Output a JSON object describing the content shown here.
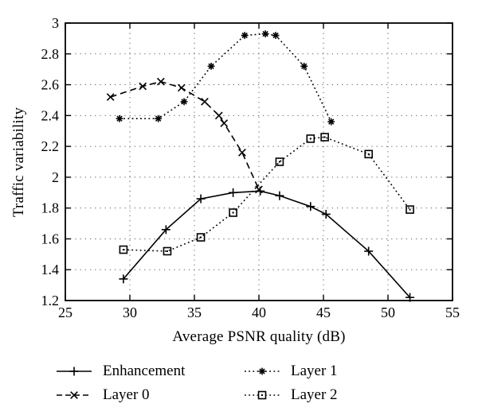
{
  "figure": {
    "background": "#ffffff",
    "ink": "#000000"
  },
  "chart_data": {
    "type": "line",
    "title": "",
    "xlabel": "Average PSNR quality (dB)",
    "ylabel": "Traffic variability",
    "xlim": [
      25,
      55
    ],
    "ylim": [
      1.2,
      3
    ],
    "xticks": [
      25,
      30,
      35,
      40,
      45,
      50,
      55
    ],
    "yticks": [
      1.2,
      1.4,
      1.6,
      1.8,
      2,
      2.2,
      2.4,
      2.6,
      2.8,
      3
    ],
    "grid": "dotted",
    "legend_position": "below",
    "series": [
      {
        "name": "Enhancement",
        "line_style": "solid",
        "marker": "plus",
        "points": [
          [
            29.5,
            1.34
          ],
          [
            32.8,
            1.66
          ],
          [
            35.5,
            1.86
          ],
          [
            38.0,
            1.9
          ],
          [
            40.1,
            1.91
          ],
          [
            41.6,
            1.88
          ],
          [
            44.0,
            1.81
          ],
          [
            45.2,
            1.76
          ],
          [
            48.5,
            1.52
          ],
          [
            51.7,
            1.22
          ]
        ]
      },
      {
        "name": "Layer 0",
        "line_style": "dashed",
        "marker": "x",
        "points": [
          [
            28.5,
            2.52
          ],
          [
            31.0,
            2.59
          ],
          [
            32.4,
            2.62
          ],
          [
            34.0,
            2.58
          ],
          [
            35.8,
            2.49
          ],
          [
            36.9,
            2.4
          ],
          [
            37.3,
            2.35
          ],
          [
            38.7,
            2.16
          ],
          [
            40.0,
            1.92
          ]
        ]
      },
      {
        "name": "Layer 1",
        "line_style": "dotted",
        "marker": "asterisk",
        "points": [
          [
            29.2,
            2.38
          ],
          [
            32.2,
            2.38
          ],
          [
            34.2,
            2.49
          ],
          [
            36.3,
            2.72
          ],
          [
            38.9,
            2.92
          ],
          [
            40.5,
            2.93
          ],
          [
            41.3,
            2.92
          ],
          [
            43.5,
            2.72
          ],
          [
            45.6,
            2.36
          ]
        ]
      },
      {
        "name": "Layer 2",
        "line_style": "dotted",
        "marker": "square",
        "points": [
          [
            29.5,
            1.53
          ],
          [
            32.9,
            1.52
          ],
          [
            35.5,
            1.61
          ],
          [
            38.0,
            1.77
          ],
          [
            41.6,
            2.1
          ],
          [
            44.0,
            2.25
          ],
          [
            45.1,
            2.26
          ],
          [
            48.5,
            2.15
          ],
          [
            51.7,
            1.79
          ]
        ]
      }
    ]
  }
}
